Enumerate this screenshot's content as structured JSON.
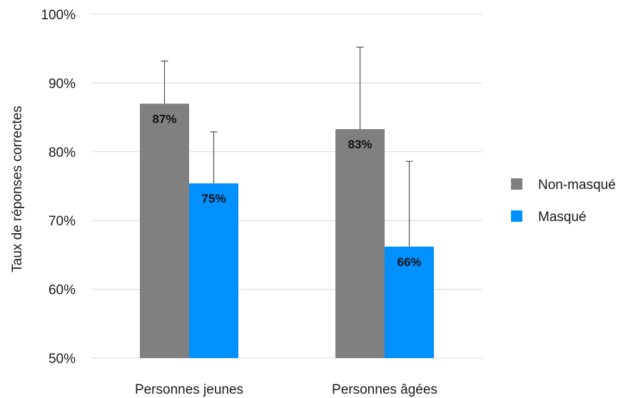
{
  "chart_data": {
    "type": "bar",
    "title": "",
    "xlabel": "",
    "ylabel": "Taux de réponses correctes",
    "categories": [
      "Personnes jeunes",
      "Personnes âgées"
    ],
    "ylim": [
      0.5,
      1.0
    ],
    "yticks": [
      0.5,
      0.6,
      0.7,
      0.8,
      0.9,
      1.0
    ],
    "ytick_labels": [
      "50%",
      "60%",
      "70%",
      "80%",
      "90%",
      "100%"
    ],
    "grid": true,
    "legend_position": "right",
    "series": [
      {
        "name": "Non-masqué",
        "color": "#808080",
        "values": [
          0.87,
          0.833
        ],
        "labels": [
          "87%",
          "83%"
        ],
        "error_upper": [
          0.932,
          0.952
        ]
      },
      {
        "name": "Masqué",
        "color": "#0091ff",
        "values": [
          0.754,
          0.662
        ],
        "labels": [
          "75%",
          "66%"
        ],
        "error_upper": [
          0.829,
          0.786
        ]
      }
    ]
  }
}
